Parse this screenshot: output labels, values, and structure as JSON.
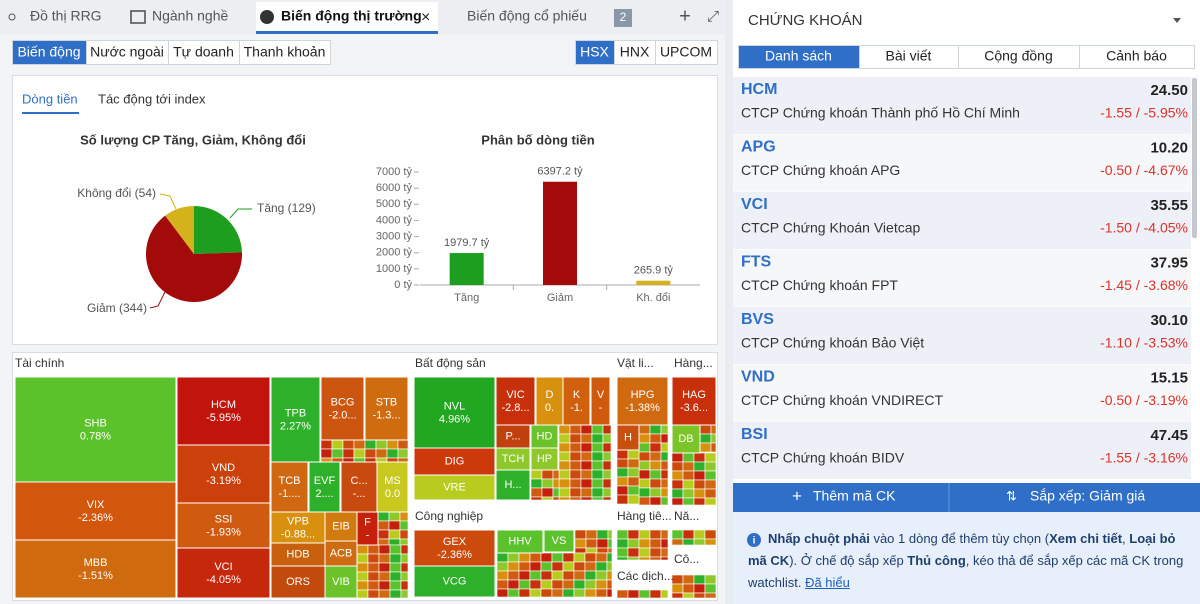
{
  "tabs": [
    "Đồ thị RRG",
    "Ngành nghề",
    "Biến động thị trường",
    "Biến động cổ phiếu"
  ],
  "tab_count": "2",
  "filters": [
    "Biến động",
    "Nước ngoài",
    "Tự doanh",
    "Thanh khoản"
  ],
  "exchanges": [
    "HSX",
    "HNX",
    "UPCOM"
  ],
  "subtabs": [
    "Dòng tiền",
    "Tác động tới index"
  ],
  "pie_chart": {
    "type": "pie",
    "title": "Số lượng CP Tăng, Giảm, Không đổi",
    "values": [
      129,
      344,
      54
    ],
    "value_labels": [
      "Tăng (129)",
      "Giảm (344)",
      "Không đổi (54)"
    ],
    "colors": [
      "#1e9e1e",
      "#a30a0a",
      "#d4b21c"
    ]
  },
  "bar_chart": {
    "type": "bar",
    "title": "Phân bố dòng tiền",
    "categories": [
      "Tăng",
      "Giảm",
      "Kh. đổi"
    ],
    "values": [
      1979.7,
      6397.2,
      265.9
    ],
    "value_labels": [
      "1979.7 tỷ",
      "6397.2 tỷ",
      "265.9 tỷ"
    ],
    "colors": [
      "#1e9e1e",
      "#a30a0a",
      "#d4b21c"
    ],
    "ylim": [
      0,
      7000
    ],
    "yticks": [
      {
        "value": 0,
        "label": "0 tỷ"
      },
      {
        "value": 1000,
        "label": "1000 tỷ"
      },
      {
        "value": 2000,
        "label": "2000 tỷ"
      },
      {
        "value": 3000,
        "label": "3000 tỷ"
      },
      {
        "value": 4000,
        "label": "4000 tỷ"
      },
      {
        "value": 5000,
        "label": "5000 tỷ"
      },
      {
        "value": 6000,
        "label": "6000 tỷ"
      },
      {
        "value": 7000,
        "label": "7000 tỷ"
      }
    ]
  },
  "treemap": {
    "sectors": [
      {
        "name": "Tài chính",
        "cells": [
          {
            "ticker": "SHB",
            "change": "0.78%"
          },
          {
            "ticker": "VIX",
            "change": "-2.36%"
          },
          {
            "ticker": "MBB",
            "change": "-1.51%"
          },
          {
            "ticker": "HCM",
            "change": "-5.95%"
          },
          {
            "ticker": "VND",
            "change": "-3.19%"
          },
          {
            "ticker": "SSI",
            "change": "-1.93%"
          },
          {
            "ticker": "VCI",
            "change": "-4.05%"
          },
          {
            "ticker": "TPB",
            "change": "2.27%"
          },
          {
            "ticker": "BCG",
            "change": "-2.0..."
          },
          {
            "ticker": "STB",
            "change": "-1.3..."
          },
          {
            "ticker": "TCB",
            "change": "-1...."
          },
          {
            "ticker": "EVF",
            "change": "2...."
          },
          {
            "ticker": "C...",
            "change": "-..."
          },
          {
            "ticker": "MS",
            "change": "0.0"
          },
          {
            "ticker": "VPB",
            "change": "-0.88..."
          },
          {
            "ticker": "HDB"
          },
          {
            "ticker": "ORS"
          },
          {
            "ticker": "EIB"
          },
          {
            "ticker": "ACB"
          },
          {
            "ticker": "VIB"
          },
          {
            "ticker": "F",
            "change": "-"
          }
        ]
      },
      {
        "name": "Bất động sản",
        "cells": [
          {
            "ticker": "NVL",
            "change": "4.96%"
          },
          {
            "ticker": "DIG"
          },
          {
            "ticker": "VRE"
          },
          {
            "ticker": "VIC",
            "change": "-2.8..."
          },
          {
            "ticker": "D",
            "change": "0."
          },
          {
            "ticker": "K",
            "change": "-1."
          },
          {
            "ticker": "V",
            "change": "-"
          },
          {
            "ticker": "P..."
          },
          {
            "ticker": "HD"
          },
          {
            "ticker": "TCH"
          },
          {
            "ticker": "HP"
          },
          {
            "ticker": "H..."
          }
        ]
      },
      {
        "name": "Vật li...",
        "cells": [
          {
            "ticker": "HPG",
            "change": "-1.38%"
          },
          {
            "ticker": "H"
          }
        ]
      },
      {
        "name": "Hàng...",
        "cells": [
          {
            "ticker": "HAG",
            "change": "-3.6..."
          },
          {
            "ticker": "DB"
          }
        ]
      },
      {
        "name": "Công nghiệp",
        "cells": [
          {
            "ticker": "GEX",
            "change": "-2.36%"
          },
          {
            "ticker": "VCG"
          },
          {
            "ticker": "HHV"
          },
          {
            "ticker": "VS"
          }
        ]
      },
      {
        "name": "Hàng tiê...",
        "cells": []
      },
      {
        "name": "Nă...",
        "cells": []
      },
      {
        "name": "Các dịch...",
        "cells": []
      },
      {
        "name": "Cô...",
        "cells": []
      }
    ]
  },
  "watchlist": {
    "title": "CHỨNG KHOÁN",
    "tabs": [
      "Danh sách",
      "Bài viết",
      "Cộng đồng",
      "Cảnh báo"
    ],
    "rows": [
      {
        "ticker": "HCM",
        "price": "24.50",
        "name": "CTCP Chứng khoán Thành phố Hồ Chí Minh",
        "change": "-1.55 / -5.95%"
      },
      {
        "ticker": "APG",
        "price": "10.20",
        "name": "CTCP Chứng khoán APG",
        "change": "-0.50 / -4.67%"
      },
      {
        "ticker": "VCI",
        "price": "35.55",
        "name": "CTCP Chứng Khoán Vietcap",
        "change": "-1.50 / -4.05%"
      },
      {
        "ticker": "FTS",
        "price": "37.95",
        "name": "CTCP Chứng khoán FPT",
        "change": "-1.45 / -3.68%"
      },
      {
        "ticker": "BVS",
        "price": "30.10",
        "name": "CTCP Chứng khoán Bảo Việt",
        "change": "-1.10 / -3.53%"
      },
      {
        "ticker": "VND",
        "price": "15.15",
        "name": "CTCP Chứng khoán VNDIRECT",
        "change": "-0.50 / -3.19%"
      },
      {
        "ticker": "BSI",
        "price": "47.45",
        "name": "CTCP Chứng khoán BIDV",
        "change": "-1.55 / -3.16%"
      }
    ],
    "add_button": "Thêm mã CK",
    "sort_button": "Sắp xếp: Giảm giá",
    "note": [
      "Nhấp chuột phải",
      " vào 1 dòng để thêm tùy chọn (",
      "Xem chi tiết",
      ", ",
      "Loại bỏ mã CK",
      "). Ở chế độ sắp xếp ",
      "Thủ công",
      ", kéo thả để sắp xếp các mã CK trong watchlist. ",
      "Đã hiểu"
    ]
  }
}
